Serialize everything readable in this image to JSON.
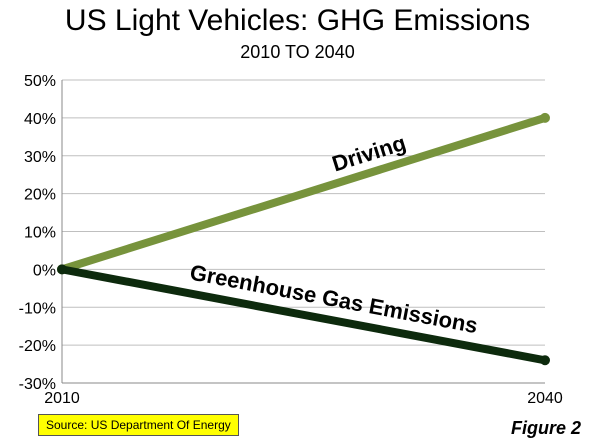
{
  "chart_data": {
    "type": "line",
    "title": "US Light Vehicles: GHG Emissions",
    "subtitle": "2010 TO 2040",
    "xlabel": "",
    "ylabel": "",
    "x": [
      2010,
      2040
    ],
    "x_tick_labels": [
      "2010",
      "2040"
    ],
    "ylim": [
      -30,
      50
    ],
    "y_ticks": [
      50,
      40,
      30,
      20,
      10,
      0,
      -10,
      -20,
      -30
    ],
    "y_tick_labels": [
      "50%",
      "40%",
      "30%",
      "20%",
      "10%",
      "0%",
      "-10%",
      "-20%",
      "-30%"
    ],
    "grid": true,
    "series": [
      {
        "name": "Driving",
        "values": [
          0,
          40
        ],
        "color": "#77933c"
      },
      {
        "name": "Greenhouse Gas Emissions",
        "values": [
          0,
          -24
        ],
        "color": "#0d2a0d"
      }
    ]
  },
  "source": "Source: US Department  Of Energy",
  "figure_label": "Figure 2",
  "colors": {
    "grid": "#bfbfbf",
    "source_bg": "#ffff00"
  }
}
